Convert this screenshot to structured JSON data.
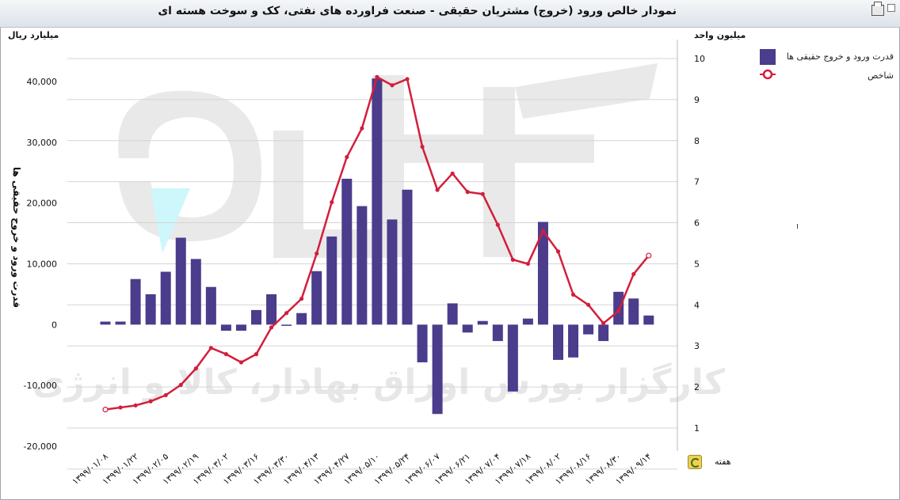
{
  "window": {
    "title": "نمودار خالص ورود (خروج) مشتریان حقیقی - صنعت فراورده های نفتی، کک و سوخت هسته ای"
  },
  "icons": {
    "print": "printer-icon",
    "restore": "restore-icon",
    "refresh": "refresh-icon"
  },
  "watermark": {
    "text": "کارگزار بورس اوراق بهادار، کالا و انرژی"
  },
  "controls": {
    "week_label": "هفته"
  },
  "colors": {
    "bar": "#4b3c8c",
    "line": "#d21f3c",
    "grid": "#d4d4d4",
    "axis_text": "#111111"
  },
  "chart_data": {
    "type": "bar",
    "left_unit": "میلیارد ریال",
    "right_unit": "میلیون واحد",
    "ylabel": "قدرت ورود و خروج حقیقی ها",
    "xlabel": "",
    "ylim": [
      -20000,
      40000
    ],
    "y_ticks": [
      "40,000",
      "30,000",
      "20,000",
      "10,000",
      "0",
      "-10,000",
      "-20,000"
    ],
    "y_tick_values": [
      40000,
      30000,
      20000,
      10000,
      0,
      -10000,
      -20000
    ],
    "y2lim": [
      1,
      10
    ],
    "y2_ticks": [
      "10",
      "9",
      "8",
      "7",
      "6",
      "5",
      "4",
      "3",
      "2",
      "1"
    ],
    "y2_tick_values": [
      10,
      9,
      8,
      7,
      6,
      5,
      4,
      3,
      2,
      1
    ],
    "x_tick_labels": [
      "۱۳۹۹/۰۱/۰۸",
      "۱۳۹۹/۰۱/۲۲",
      "۱۳۹۹/۰۲/۰۵",
      "۱۳۹۹/۰۲/۱۹",
      "۱۳۹۹/۰۳/۰۲",
      "۱۳۹۹/۰۳/۱۶",
      "۱۳۹۹/۰۳/۳۰",
      "۱۳۹۹/۰۴/۱۳",
      "۱۳۹۹/۰۴/۲۷",
      "۱۳۹۹/۰۵/۱۰",
      "۱۳۹۹/۰۵/۲۴",
      "۱۳۹۹/۰۶/۰۷",
      "۱۳۹۹/۰۶/۲۱",
      "۱۳۹۹/۰۷/۰۴",
      "۱۳۹۹/۰۷/۱۸",
      "۱۳۹۹/۰۸/۰۲",
      "۱۳۹۹/۰۸/۱۶",
      "۱۳۹۹/۰۸/۳۰",
      "۱۳۹۹/۰۹/۱۴"
    ],
    "legend_position": "top-right",
    "grid": true,
    "series": [
      {
        "name": "قدرت ورود و خروج حقیقی ها",
        "type": "bar",
        "axis": "left",
        "values": [
          500,
          500,
          7500,
          5000,
          8700,
          14300,
          10800,
          6200,
          -1000,
          -1000,
          2400,
          5000,
          -200,
          1900,
          8800,
          14500,
          24000,
          19500,
          40500,
          17300,
          22200,
          -6200,
          -14700,
          3500,
          -1300,
          600,
          -2700,
          -11000,
          1000,
          16900,
          -5800,
          -5400,
          -1600,
          -2700,
          5400,
          4300,
          1500
        ]
      },
      {
        "name": "شاخص",
        "type": "line",
        "axis": "right",
        "values": [
          1.45,
          1.5,
          1.55,
          1.65,
          1.8,
          2.05,
          2.45,
          2.95,
          2.8,
          2.6,
          2.8,
          3.45,
          3.8,
          4.15,
          5.25,
          6.5,
          7.6,
          8.3,
          9.55,
          9.35,
          9.5,
          7.85,
          6.8,
          7.2,
          6.75,
          6.7,
          5.95,
          5.1,
          5,
          5.8,
          5.3,
          4.25,
          4,
          3.55,
          3.85,
          4.75,
          5.2
        ]
      }
    ]
  }
}
